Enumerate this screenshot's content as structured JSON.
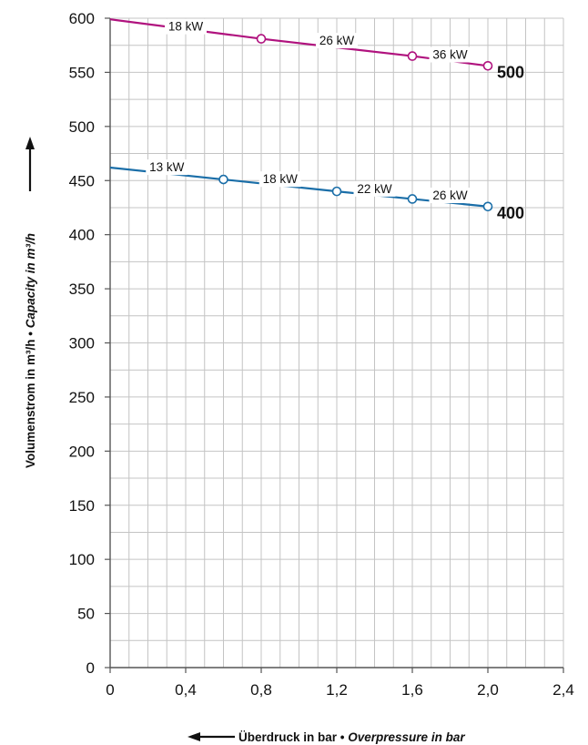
{
  "chart_data": {
    "type": "line",
    "xlabel": {
      "de": "Überdruck in bar",
      "sep": " • ",
      "en": "Overpressure in bar"
    },
    "ylabel": {
      "de": "Volumenstrom in m³/h",
      "sep": " • ",
      "en": "Capacity in m³/h"
    },
    "xlim": [
      0,
      2.4
    ],
    "ylim": [
      0,
      600
    ],
    "x_ticks": [
      0,
      0.4,
      0.8,
      1.2,
      1.6,
      2.0,
      2.4
    ],
    "x_tick_labels": [
      "0",
      "0,4",
      "0,8",
      "1,2",
      "1,6",
      "2,0",
      "2,4"
    ],
    "y_ticks": [
      0,
      50,
      100,
      150,
      200,
      250,
      300,
      350,
      400,
      450,
      500,
      550,
      600
    ],
    "y_tick_labels": [
      "0",
      "50",
      "100",
      "150",
      "200",
      "250",
      "300",
      "350",
      "400",
      "450",
      "500",
      "550",
      "600"
    ],
    "grid": true,
    "series": [
      {
        "name": "500",
        "color": "#b0127e",
        "x": [
          0,
          0.8,
          1.6,
          2.0
        ],
        "y": [
          599,
          581,
          565,
          556
        ],
        "markers": [
          0.8,
          1.6,
          2.0
        ],
        "power_labels": [
          {
            "text": "18 kW",
            "x": 0.4,
            "y": 586
          },
          {
            "text": "26 kW",
            "x": 1.2,
            "y": 573
          },
          {
            "text": "36 kW",
            "x": 1.8,
            "y": 560
          }
        ]
      },
      {
        "name": "400",
        "color": "#1a6ea8",
        "x": [
          0,
          0.6,
          1.2,
          1.6,
          2.0
        ],
        "y": [
          462,
          451,
          440,
          433,
          426
        ],
        "markers": [
          0.6,
          1.2,
          1.6,
          2.0
        ],
        "power_labels": [
          {
            "text": "13 kW",
            "x": 0.3,
            "y": 456
          },
          {
            "text": "18 kW",
            "x": 0.9,
            "y": 445
          },
          {
            "text": "22 kW",
            "x": 1.4,
            "y": 436
          },
          {
            "text": "26 kW",
            "x": 1.8,
            "y": 430
          }
        ]
      }
    ]
  }
}
